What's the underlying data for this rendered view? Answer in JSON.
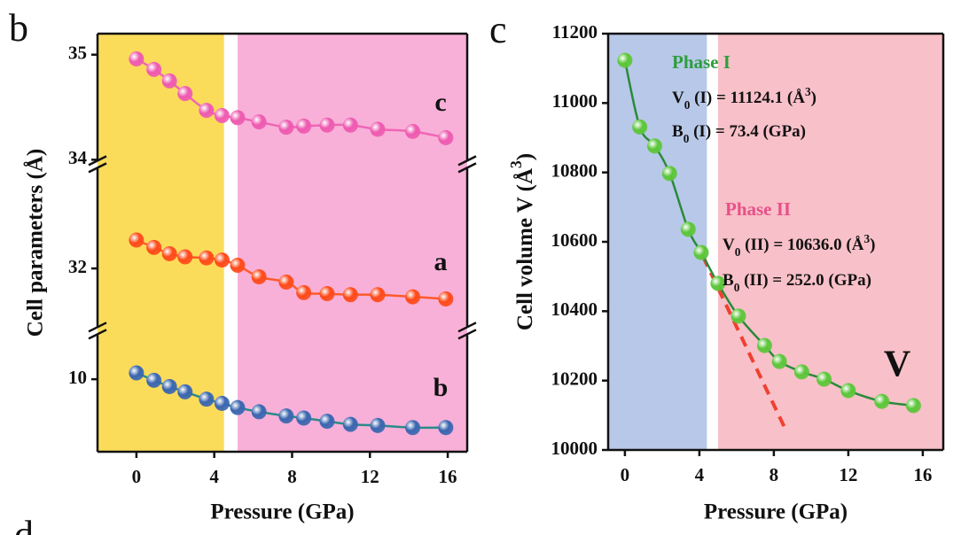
{
  "chart_data": [
    {
      "type": "line",
      "panel_label": "b",
      "x_label": "Pressure (GPa)",
      "y_label": "Cell parameters (Å)",
      "x": [
        0,
        0.9,
        1.7,
        2.5,
        3.6,
        4.4,
        5.2,
        6.3,
        7.7,
        8.6,
        9.8,
        11.0,
        12.4,
        14.2,
        15.9
      ],
      "xlim": [
        -2,
        17
      ],
      "xticks": [
        0,
        4,
        8,
        12,
        16
      ],
      "regions": [
        {
          "xlim": [
            -2,
            4.5
          ],
          "color": "#fbdc5a"
        },
        {
          "xlim": [
            5.2,
            17
          ],
          "color": "#f8b0d8"
        }
      ],
      "y_segments": [
        {
          "ylim": [
            34,
            35.2
          ],
          "yticks": [
            34,
            35
          ]
        },
        {
          "ylim": [
            31.45,
            32.95
          ],
          "yticks": [
            32
          ]
        },
        {
          "ylim": [
            9.31,
            10.42
          ],
          "yticks": [
            10
          ]
        }
      ],
      "series": [
        {
          "name": "c",
          "segment": 0,
          "color": "#ee5ab0",
          "line_color": "#f065b5",
          "values": [
            34.96,
            34.86,
            34.75,
            34.63,
            34.47,
            34.42,
            34.4,
            34.36,
            34.31,
            34.32,
            34.33,
            34.33,
            34.29,
            34.27,
            34.21
          ]
        },
        {
          "name": "a",
          "segment": 1,
          "color": "#ff4a1a",
          "line_color": "#ff5a2a",
          "values": [
            32.27,
            32.2,
            32.14,
            32.11,
            32.1,
            32.08,
            32.03,
            31.92,
            31.87,
            31.77,
            31.76,
            31.75,
            31.75,
            31.73,
            31.71
          ]
        },
        {
          "name": "b",
          "segment": 2,
          "color": "#3a66b0",
          "line_color": "#2a8a8a",
          "values": [
            10.06,
            9.99,
            9.93,
            9.88,
            9.81,
            9.77,
            9.73,
            9.69,
            9.65,
            9.63,
            9.6,
            9.57,
            9.56,
            9.54,
            9.54
          ]
        }
      ]
    },
    {
      "type": "line",
      "panel_label": "c",
      "x_label": "Pressure (GPa)",
      "y_label": {
        "parts": [
          "Cell volume V (Å",
          "3",
          ")"
        ],
        "styles": [
          "normal",
          "sup",
          "normal"
        ]
      },
      "x": [
        0,
        0.8,
        1.6,
        2.4,
        3.4,
        4.1,
        5.0,
        6.1,
        7.5,
        8.3,
        9.5,
        10.7,
        12.0,
        13.8,
        15.5
      ],
      "xlim": [
        -0.9,
        17.1
      ],
      "xticks": [
        0,
        4,
        8,
        12,
        16
      ],
      "ylim": [
        10000,
        11200
      ],
      "yticks": [
        10000,
        10200,
        10400,
        10600,
        10800,
        11000,
        11200
      ],
      "regions": [
        {
          "xlim": [
            -0.9,
            4.4
          ],
          "color": "#b8c8e8"
        },
        {
          "xlim": [
            5.0,
            17.1
          ],
          "color": "#f8c0c8"
        }
      ],
      "series": [
        {
          "name": "V",
          "color": "#5cc63a",
          "line_color": "#2a8a3a",
          "values": [
            11123,
            10931,
            10876,
            10797,
            10636,
            10569,
            10480,
            10386,
            10301,
            10255,
            10225,
            10204,
            10171,
            10140,
            10128
          ]
        }
      ],
      "reference_line": {
        "x": [
          4.2,
          8.7
        ],
        "values": [
          10557,
          10051
        ],
        "color": "#f04030"
      },
      "annotations": [
        {
          "parts": [
            "Phase I"
          ],
          "styles": [
            "normal"
          ],
          "color": "#2e9e3e"
        },
        {
          "parts": [
            "V",
            "0",
            " (I) = 11124.1 (Å",
            "3",
            ")"
          ],
          "styles": [
            "normal",
            "sub",
            "normal",
            "sup",
            "normal"
          ],
          "color": "#111111"
        },
        {
          "parts": [
            "B",
            "0",
            " (I) = 73.4 (GPa)"
          ],
          "styles": [
            "normal",
            "sub",
            "normal"
          ],
          "color": "#111111"
        },
        {
          "parts": [
            "Phase II"
          ],
          "styles": [
            "normal"
          ],
          "color": "#e8508a"
        },
        {
          "parts": [
            "V",
            "0",
            " (II) = 10636.0 (Å",
            "3",
            ")"
          ],
          "styles": [
            "normal",
            "sub",
            "normal",
            "sup",
            "normal"
          ],
          "color": "#111111"
        },
        {
          "parts": [
            "B",
            "0",
            " (II) = 252.0 (GPa)"
          ],
          "styles": [
            "normal",
            "sub",
            "normal"
          ],
          "color": "#111111"
        }
      ]
    }
  ],
  "cut_panel_label": "d"
}
